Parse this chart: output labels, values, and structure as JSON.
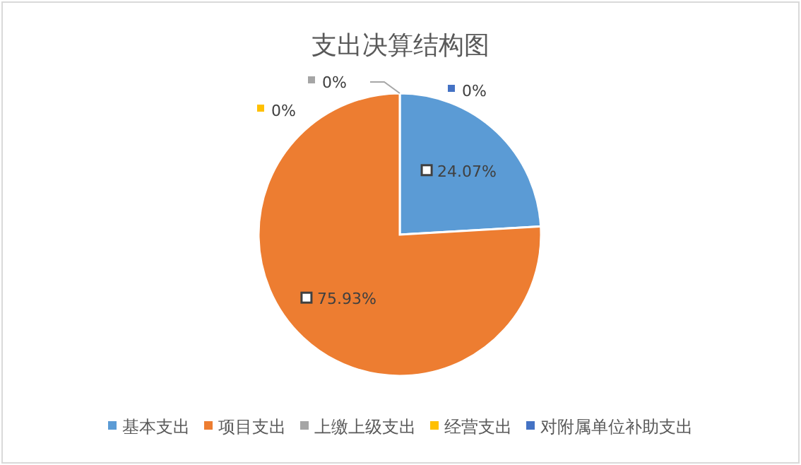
{
  "chart_data": {
    "type": "pie",
    "title": "支出决算结构图",
    "categories": [
      "基本支出",
      "项目支出",
      "上缴上级支出",
      "经营支出",
      "对附属单位补助支出"
    ],
    "values": [
      24.07,
      75.93,
      0,
      0,
      0
    ],
    "value_labels": [
      "24.07%",
      "75.93%",
      "0%",
      "0%",
      "0%"
    ],
    "colors": [
      "#5b9bd5",
      "#ed7d31",
      "#a5a5a5",
      "#ffc000",
      "#4472c4"
    ],
    "legend": "bottom"
  }
}
